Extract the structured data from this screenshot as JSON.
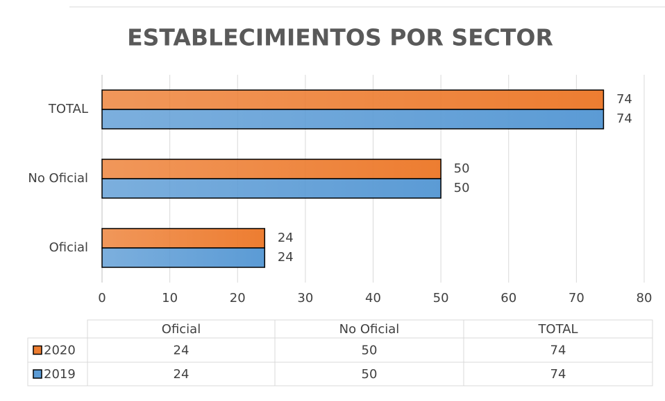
{
  "chart_data": {
    "type": "bar",
    "orientation": "horizontal",
    "title": "ESTABLECIMIENTOS POR SECTOR",
    "categories": [
      "Oficial",
      "No Oficial",
      "TOTAL"
    ],
    "series": [
      {
        "name": "2020",
        "color": "#ed7d31",
        "values": [
          24,
          50,
          74
        ]
      },
      {
        "name": "2019",
        "color": "#5b9bd5",
        "values": [
          24,
          50,
          74
        ]
      }
    ],
    "xlim": [
      0,
      80
    ],
    "xticks": [
      0,
      10,
      20,
      30,
      40,
      50,
      60,
      70,
      80
    ],
    "grid": true,
    "data_table": true
  }
}
